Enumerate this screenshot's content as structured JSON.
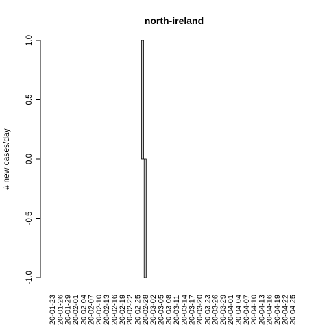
{
  "chart_data": {
    "type": "bar",
    "title": "north-ireland",
    "xlabel": "",
    "ylabel": "# new cases/day",
    "ylim": [
      -1.0,
      1.0
    ],
    "yticks": [
      "-1.0",
      "-0.5",
      "0.0",
      "0.5",
      "1.0"
    ],
    "x_tick_labels": [
      "20-01-23",
      "20-01-26",
      "20-01-29",
      "20-02-01",
      "20-02-04",
      "20-02-07",
      "20-02-10",
      "20-02-13",
      "20-02-16",
      "20-02-19",
      "20-02-22",
      "20-02-25",
      "20-02-28",
      "20-03-02",
      "20-03-05",
      "20-03-08",
      "20-03-11",
      "20-03-14",
      "20-03-17",
      "20-03-20",
      "20-03-23",
      "20-03-26",
      "20-03-29",
      "20-04-01",
      "20-04-04",
      "20-04-07",
      "20-04-10",
      "20-04-13",
      "20-04-16",
      "20-04-19",
      "20-04-22",
      "20-04-25"
    ],
    "start_date": "2020-01-23",
    "num_days": 96,
    "nonzero_values": [
      {
        "date": "2020-02-27",
        "value": 1
      },
      {
        "date": "2020-02-28",
        "value": -1
      }
    ],
    "bar_fill": "#d3d3d3",
    "bar_stroke": "#000000"
  }
}
